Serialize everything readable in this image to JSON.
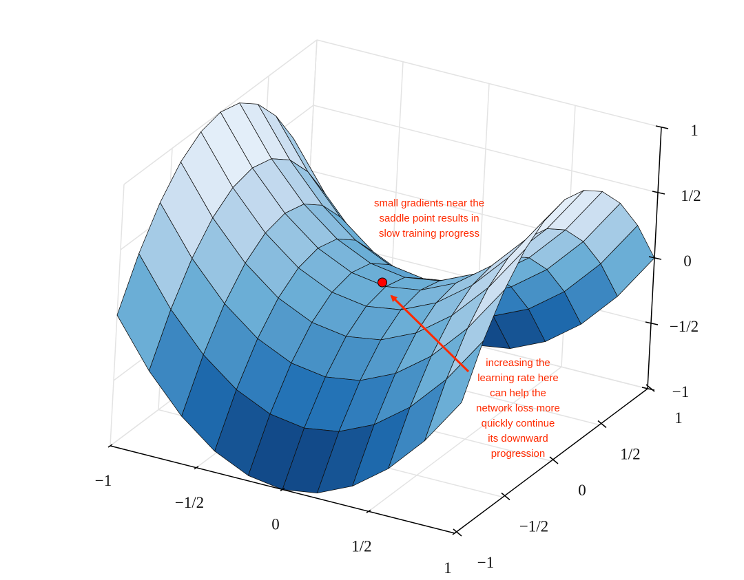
{
  "chart_data": {
    "type": "surface",
    "x": [
      -1,
      -0.8,
      -0.6,
      -0.4,
      -0.2,
      0,
      0.2,
      0.4,
      0.6,
      0.8,
      1
    ],
    "y": [
      -1,
      -0.8,
      -0.6,
      -0.4,
      -0.2,
      0,
      0.2,
      0.4,
      0.6,
      0.8,
      1
    ],
    "z": [
      [
        0,
        -0.36,
        -0.64,
        -0.84,
        -0.96,
        -1,
        -0.96,
        -0.84,
        -0.64,
        -0.36,
        0
      ],
      [
        0.36,
        0,
        -0.28,
        -0.48,
        -0.6,
        -0.64,
        -0.6,
        -0.48,
        -0.28,
        0,
        0.36
      ],
      [
        0.64,
        0.28,
        0,
        -0.2,
        -0.32,
        -0.36,
        -0.32,
        -0.2,
        0,
        0.28,
        0.64
      ],
      [
        0.84,
        0.48,
        0.2,
        0,
        -0.12,
        -0.16,
        -0.12,
        0,
        0.2,
        0.48,
        0.84
      ],
      [
        0.96,
        0.6,
        0.32,
        0.12,
        0,
        -0.04,
        0,
        0.12,
        0.32,
        0.6,
        0.96
      ],
      [
        1,
        0.64,
        0.36,
        0.16,
        0.04,
        0,
        0.04,
        0.16,
        0.36,
        0.64,
        1
      ],
      [
        0.96,
        0.6,
        0.32,
        0.12,
        0,
        -0.04,
        0,
        0.12,
        0.32,
        0.6,
        0.96
      ],
      [
        0.84,
        0.48,
        0.2,
        0,
        -0.12,
        -0.16,
        -0.12,
        0,
        0.2,
        0.48,
        0.84
      ],
      [
        0.64,
        0.28,
        0,
        -0.2,
        -0.32,
        -0.36,
        -0.32,
        -0.2,
        0,
        0.28,
        0.64
      ],
      [
        0.36,
        0,
        -0.28,
        -0.48,
        -0.6,
        -0.64,
        -0.6,
        -0.48,
        -0.28,
        0,
        0.36
      ],
      [
        0,
        -0.36,
        -0.64,
        -0.84,
        -0.96,
        -1,
        -0.96,
        -0.84,
        -0.64,
        -0.36,
        0
      ]
    ],
    "colormap": [
      "#08306b",
      "#2171b5",
      "#6baed6",
      "#c6dbef",
      "#f7fbff"
    ],
    "xlim": [
      -1,
      1
    ],
    "ylim": [
      -1,
      1
    ],
    "zlim": [
      -1,
      1
    ],
    "xticks": [
      {
        "value": -1,
        "label": "−1"
      },
      {
        "value": -0.5,
        "label": "−1/2"
      },
      0,
      {
        "value": 0.5,
        "label": "1/2"
      },
      1
    ],
    "yticks": [
      {
        "value": -1,
        "label": "−1"
      },
      {
        "value": -0.5,
        "label": "−1/2"
      },
      0,
      {
        "value": 0.5,
        "label": "1/2"
      },
      1
    ],
    "zticks": [
      {
        "value": -1,
        "label": "−1"
      },
      {
        "value": -0.5,
        "label": "−1/2"
      },
      0,
      {
        "value": 0.5,
        "label": "1/2"
      },
      1
    ],
    "grid": true,
    "point": {
      "x": 0,
      "y": 0,
      "z": 0,
      "color": "#ff0000"
    },
    "annotations": [
      {
        "lines": [
          "small gradients near the",
          "saddle point results in",
          "slow training progress"
        ],
        "color": "#ff2a00"
      },
      {
        "lines": [
          "increasing the",
          "learning rate here",
          "can help the",
          "network loss more",
          "quickly continue",
          "its downward",
          "progression"
        ],
        "color": "#ff2a00"
      }
    ]
  }
}
